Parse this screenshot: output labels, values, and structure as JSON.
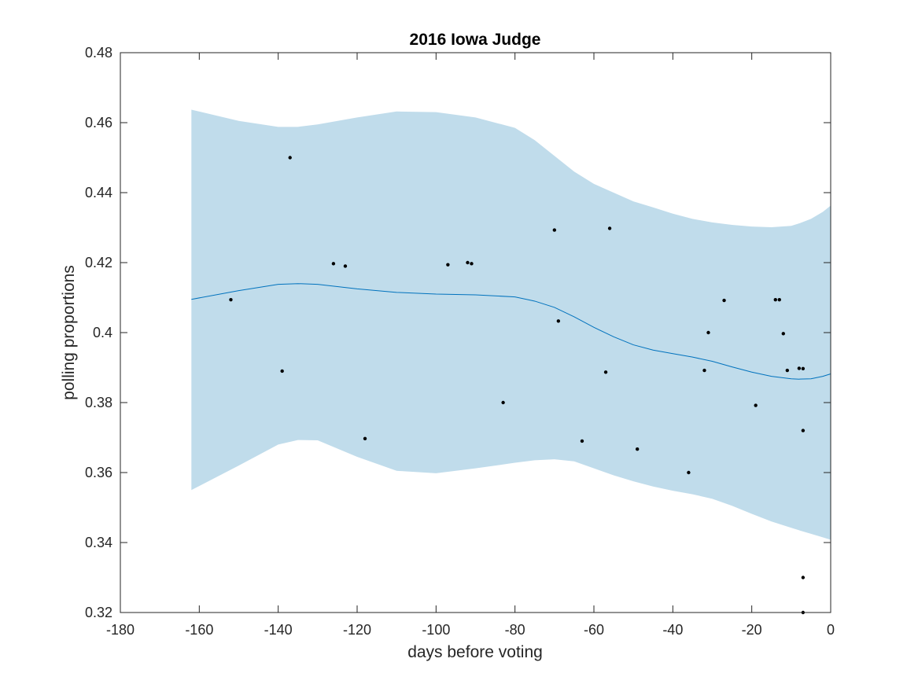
{
  "chart_data": {
    "type": "line",
    "title": "2016 Iowa Judge",
    "xlabel": "days before voting",
    "ylabel": "polling proportions",
    "xlim": [
      -180,
      0
    ],
    "ylim": [
      0.32,
      0.48
    ],
    "x_ticks": [
      -180,
      -160,
      -140,
      -120,
      -100,
      -80,
      -60,
      -40,
      -20,
      0
    ],
    "x_tick_labels": [
      "-180",
      "-160",
      "-140",
      "-120",
      "-100",
      "-80",
      "-60",
      "-40",
      "-20",
      "0"
    ],
    "y_ticks": [
      0.32,
      0.34,
      0.36,
      0.38,
      0.4,
      0.42,
      0.44,
      0.46,
      0.48
    ],
    "y_tick_labels": [
      "0.32",
      "0.34",
      "0.36",
      "0.38",
      "0.4",
      "0.42",
      "0.44",
      "0.46",
      "0.48"
    ],
    "grid": false,
    "legend": "none",
    "colors": {
      "band": "#c0dceb",
      "line": "#0072bd",
      "points": "#000000",
      "axes": "#262626"
    },
    "fit_line": {
      "x": [
        -162,
        -150,
        -140,
        -135,
        -130,
        -120,
        -110,
        -100,
        -90,
        -80,
        -75,
        -70,
        -65,
        -60,
        -55,
        -50,
        -45,
        -40,
        -35,
        -30,
        -25,
        -20,
        -15,
        -10,
        -8,
        -5,
        -2,
        0
      ],
      "y": [
        0.4095,
        0.412,
        0.4138,
        0.414,
        0.4138,
        0.4125,
        0.4115,
        0.411,
        0.4108,
        0.4102,
        0.409,
        0.4072,
        0.4045,
        0.4015,
        0.3988,
        0.3965,
        0.395,
        0.394,
        0.393,
        0.3918,
        0.3902,
        0.3887,
        0.3875,
        0.3868,
        0.3867,
        0.3868,
        0.3875,
        0.3882
      ]
    },
    "confidence_band": {
      "x": [
        -162,
        -150,
        -140,
        -135,
        -130,
        -120,
        -110,
        -100,
        -90,
        -80,
        -75,
        -70,
        -65,
        -60,
        -55,
        -50,
        -45,
        -40,
        -35,
        -30,
        -25,
        -20,
        -15,
        -10,
        -8,
        -5,
        -2,
        0
      ],
      "upper": [
        0.4637,
        0.4605,
        0.4588,
        0.4588,
        0.4595,
        0.4615,
        0.4632,
        0.463,
        0.4615,
        0.4585,
        0.455,
        0.4505,
        0.446,
        0.4425,
        0.44,
        0.4375,
        0.4358,
        0.434,
        0.4325,
        0.4315,
        0.4308,
        0.4303,
        0.4301,
        0.4305,
        0.4312,
        0.4325,
        0.4345,
        0.4363
      ],
      "lower": [
        0.355,
        0.362,
        0.368,
        0.3693,
        0.3692,
        0.3645,
        0.3605,
        0.3598,
        0.3612,
        0.3628,
        0.3635,
        0.3638,
        0.3632,
        0.3612,
        0.3592,
        0.3575,
        0.356,
        0.3548,
        0.3538,
        0.3525,
        0.3505,
        0.3482,
        0.346,
        0.3442,
        0.3435,
        0.3425,
        0.3415,
        0.3408
      ]
    },
    "points": {
      "x": [
        -152,
        -139,
        -137,
        -126,
        -123,
        -118,
        -97,
        -92,
        -91,
        -83,
        -70,
        -69,
        -63,
        -57,
        -56,
        -49,
        -36,
        -32,
        -31,
        -27,
        -19,
        -14,
        -13,
        -12,
        -11,
        -8,
        -7,
        -7,
        -7,
        -7
      ],
      "y": [
        0.4094,
        0.389,
        0.45,
        0.4197,
        0.419,
        0.3697,
        0.4194,
        0.42,
        0.4197,
        0.38,
        0.4293,
        0.4033,
        0.369,
        0.3887,
        0.4298,
        0.3667,
        0.36,
        0.3892,
        0.4,
        0.4092,
        0.3792,
        0.4094,
        0.4094,
        0.3997,
        0.3892,
        0.3898,
        0.3897,
        0.372,
        0.33,
        0.32
      ]
    }
  }
}
